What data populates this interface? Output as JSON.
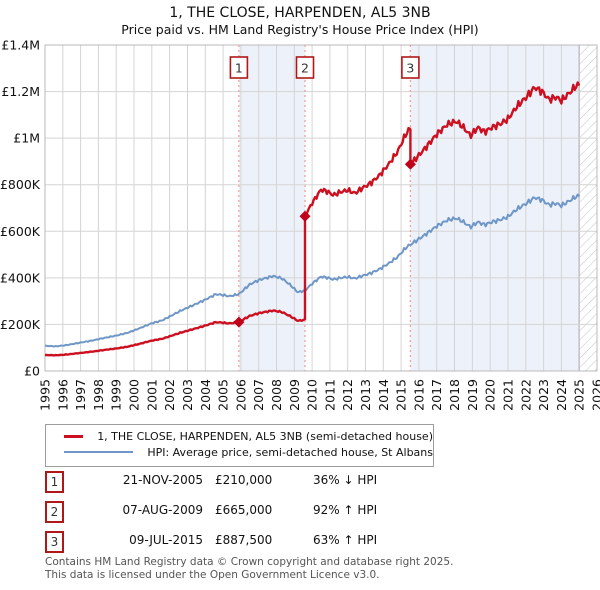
{
  "title": "1, THE CLOSE, HARPENDEN, AL5 3NB",
  "subtitle": "Price paid vs. HM Land Registry's House Price Index (HPI)",
  "chart_data": {
    "type": "line",
    "title": "1, THE CLOSE, HARPENDEN, AL5 3NB",
    "subtitle": "Price paid vs. HM Land Registry's House Price Index (HPI)",
    "x_range": [
      1995,
      2026
    ],
    "y_range": [
      0,
      1400000
    ],
    "grid": true,
    "legend_position": "below",
    "y_ticks": [
      {
        "value": 0,
        "label": "£0"
      },
      {
        "value": 200000,
        "label": "£200K"
      },
      {
        "value": 400000,
        "label": "£400K"
      },
      {
        "value": 600000,
        "label": "£600K"
      },
      {
        "value": 800000,
        "label": "£800K"
      },
      {
        "value": 1000000,
        "label": "£1M"
      },
      {
        "value": 1200000,
        "label": "£1.2M"
      },
      {
        "value": 1400000,
        "label": "£1.4M"
      }
    ],
    "x_ticks": [
      1995,
      1996,
      1997,
      1998,
      1999,
      2000,
      2001,
      2002,
      2003,
      2004,
      2005,
      2006,
      2007,
      2008,
      2009,
      2010,
      2011,
      2012,
      2013,
      2014,
      2015,
      2016,
      2017,
      2018,
      2019,
      2020,
      2021,
      2022,
      2023,
      2024,
      2025,
      2026
    ],
    "data_start_year": 1995.0,
    "data_end_year": 2025.0,
    "series": [
      {
        "name": "1, THE CLOSE, HARPENDEN, AL5 3NB (semi-detached house)",
        "color": "#cc1020",
        "line_width": 2.4
      },
      {
        "name": "HPI: Average price, semi-detached house, St Albans",
        "color": "#6e97c8",
        "line_width": 2.0
      }
    ],
    "hpi_anchor_points_gbp_k": [
      [
        1995.0,
        108
      ],
      [
        1995.6,
        106
      ],
      [
        1996.2,
        111
      ],
      [
        1997.0,
        122
      ],
      [
        1997.6,
        130
      ],
      [
        1998.2,
        140
      ],
      [
        1999.0,
        152
      ],
      [
        1999.6,
        163
      ],
      [
        2000.2,
        180
      ],
      [
        2001.0,
        205
      ],
      [
        2001.6,
        218
      ],
      [
        2002.1,
        238
      ],
      [
        2002.6,
        258
      ],
      [
        2003.1,
        275
      ],
      [
        2003.6,
        292
      ],
      [
        2004.1,
        310
      ],
      [
        2004.6,
        330
      ],
      [
        2005.0,
        326
      ],
      [
        2005.35,
        321
      ],
      [
        2005.89,
        330
      ],
      [
        2006.5,
        372
      ],
      [
        2007.0,
        390
      ],
      [
        2007.8,
        408
      ],
      [
        2008.3,
        398
      ],
      [
        2008.8,
        368
      ],
      [
        2009.2,
        338
      ],
      [
        2009.6,
        346
      ],
      [
        2010.0,
        375
      ],
      [
        2010.5,
        405
      ],
      [
        2010.8,
        402
      ],
      [
        2011.2,
        393
      ],
      [
        2011.6,
        400
      ],
      [
        2012.0,
        404
      ],
      [
        2012.4,
        397
      ],
      [
        2012.8,
        408
      ],
      [
        2013.3,
        420
      ],
      [
        2013.8,
        438
      ],
      [
        2014.3,
        462
      ],
      [
        2014.8,
        490
      ],
      [
        2015.3,
        532
      ],
      [
        2015.9,
        562
      ],
      [
        2016.4,
        588
      ],
      [
        2017.0,
        622
      ],
      [
        2017.6,
        648
      ],
      [
        2018.1,
        656
      ],
      [
        2018.5,
        640
      ],
      [
        2018.9,
        618
      ],
      [
        2019.3,
        640
      ],
      [
        2019.7,
        628
      ],
      [
        2020.1,
        640
      ],
      [
        2020.6,
        650
      ],
      [
        2021.0,
        662
      ],
      [
        2021.5,
        695
      ],
      [
        2022.0,
        718
      ],
      [
        2022.5,
        745
      ],
      [
        2022.9,
        735
      ],
      [
        2023.3,
        713
      ],
      [
        2023.7,
        720
      ],
      [
        2024.0,
        710
      ],
      [
        2024.4,
        728
      ],
      [
        2024.8,
        748
      ],
      [
        2025.0,
        752
      ]
    ],
    "transactions": [
      {
        "num": "1",
        "date": "21-NOV-2005",
        "year": 2005.89,
        "price": 210000,
        "price_label": "£210,000",
        "vs_hpi": "36% ↓ HPI"
      },
      {
        "num": "2",
        "date": "07-AUG-2009",
        "year": 2009.6,
        "price": 665000,
        "price_label": "£665,000",
        "vs_hpi": "92% ↑ HPI"
      },
      {
        "num": "3",
        "date": "09-JUL-2015",
        "year": 2015.52,
        "price": 887500,
        "price_label": "£887,500",
        "vs_hpi": "63% ↑ HPI"
      }
    ],
    "shaded_ownership_periods": [
      [
        2005.89,
        2009.6
      ],
      [
        2015.52,
        2025.0
      ]
    ],
    "colors": {
      "price_line": "#cc1020",
      "hpi_line": "#6e97c8",
      "sale_marker": "#c00018",
      "sale_dotted_line": "#f49a96",
      "number_box_border": "#b01818",
      "ownership_shading": "#edf2fa",
      "gridline": "#d4d4d4",
      "plot_border": "#b8b8b8",
      "hatch_stripe": "#c4c9d2"
    }
  },
  "footer": {
    "line1": "Contains HM Land Registry data © Crown copyright and database right 2025.",
    "line2": "This data is licensed under the Open Government Licence v3.0."
  }
}
